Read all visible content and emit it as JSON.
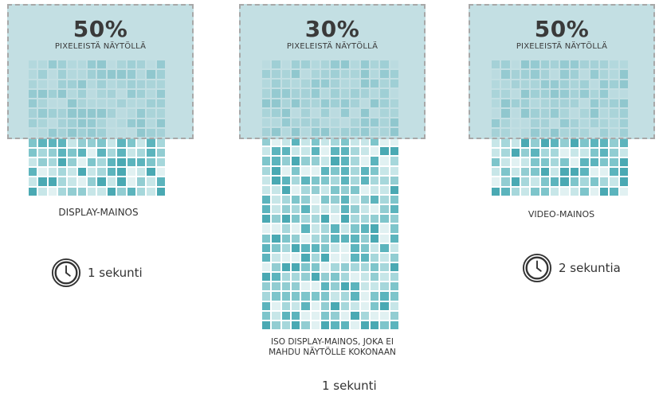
{
  "colors": {
    "tile_palette": [
      "#5cb4bd",
      "#7ec5cb",
      "#a6d7db",
      "#c7e6e8",
      "#e1f1f2",
      "#92cdd2",
      "#4aa9b3"
    ],
    "viewport_fill": "#acd3d8",
    "viewport_border": "#a8a8a8",
    "text": "#333333"
  },
  "panels": [
    {
      "id": "display",
      "viewport_percent": "50%",
      "viewport_caption": "PIXELEISTÄ NÄYTÖLLÄ",
      "ad_label": "DISPLAY-MAINOS",
      "time_label": "1 sekunti",
      "time_icon": "clock-icon"
    },
    {
      "id": "large-display",
      "viewport_percent": "30%",
      "viewport_caption": "PIXELEISTÄ NÄYTÖLLÄ",
      "ad_label_line1": "ISO DISPLAY-MAINOS, JOKA EI",
      "ad_label_line2": "MAHDU NÄYTÖLLE KOKONAAN",
      "time_label": "1 sekunti"
    },
    {
      "id": "video",
      "viewport_percent": "50%",
      "viewport_caption": "PIXELEISTÄ NÄYTÖLLÄ",
      "ad_label": "VIDEO-MAINOS",
      "time_label": "2 sekuntia",
      "time_icon": "clock-icon"
    }
  ]
}
